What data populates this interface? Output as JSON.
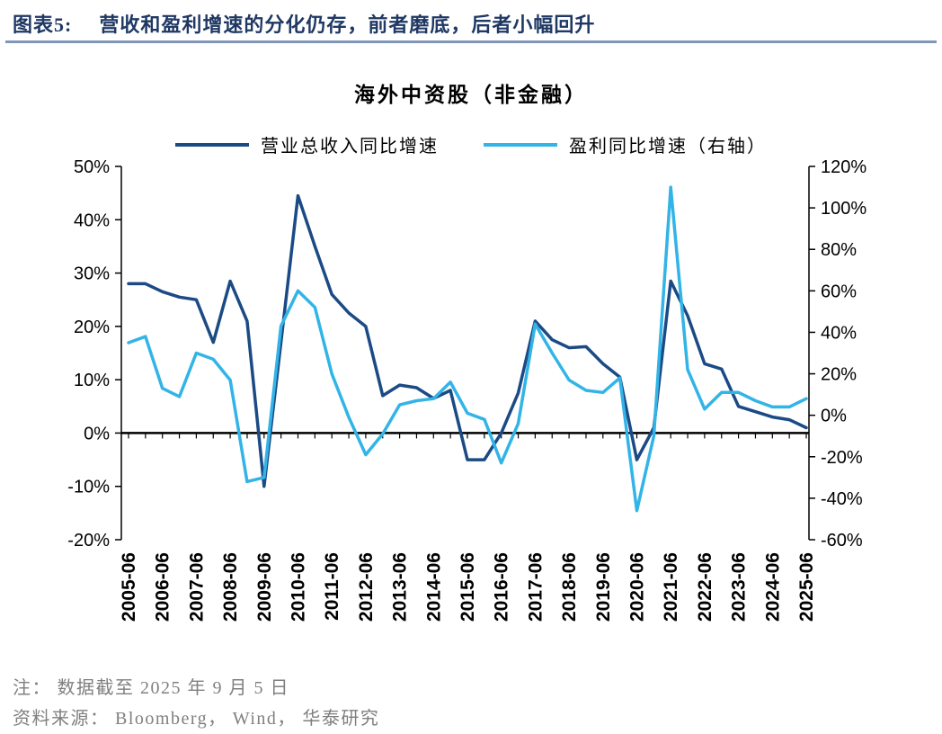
{
  "header": {
    "tag": "图表5:",
    "title": "营收和盈利增速的分化仍存，前者磨底，后者小幅回升"
  },
  "chart_data": {
    "type": "line",
    "title": "海外中资股（非金融）",
    "grid": false,
    "legend_position": "top",
    "x_labels": [
      "2005-06",
      "2006-06",
      "2007-06",
      "2008-06",
      "2009-06",
      "2010-06",
      "2011-06",
      "2012-06",
      "2013-06",
      "2014-06",
      "2015-06",
      "2016-06",
      "2017-06",
      "2018-06",
      "2019-06",
      "2020-06",
      "2021-06",
      "2022-06",
      "2023-06",
      "2024-06",
      "2025-06"
    ],
    "categories": [
      "2005-06",
      "2005-12",
      "2006-06",
      "2006-12",
      "2007-06",
      "2007-12",
      "2008-06",
      "2008-12",
      "2009-06",
      "2009-12",
      "2010-06",
      "2010-12",
      "2011-06",
      "2011-12",
      "2012-06",
      "2012-12",
      "2013-06",
      "2013-12",
      "2014-06",
      "2014-12",
      "2015-06",
      "2015-12",
      "2016-06",
      "2016-12",
      "2017-06",
      "2017-12",
      "2018-06",
      "2018-12",
      "2019-06",
      "2019-12",
      "2020-06",
      "2020-12",
      "2021-06",
      "2021-12",
      "2022-06",
      "2022-12",
      "2023-06",
      "2023-12",
      "2024-06",
      "2024-12",
      "2025-06"
    ],
    "left_axis": {
      "min": -20,
      "max": 50,
      "step": 10,
      "ticks": [
        "50%",
        "40%",
        "30%",
        "20%",
        "10%",
        "0%",
        "-10%",
        "-20%"
      ]
    },
    "right_axis": {
      "min": -60,
      "max": 120,
      "step": 20,
      "ticks": [
        "120%",
        "100%",
        "80%",
        "60%",
        "40%",
        "20%",
        "0%",
        "-20%",
        "-40%",
        "-60%"
      ]
    },
    "series": [
      {
        "name": "营业总收入同比增速",
        "axis": "left",
        "color": "#1b4a85",
        "values": [
          28,
          28,
          26.5,
          25.5,
          25,
          17,
          28.5,
          21,
          -10,
          17,
          44.5,
          35,
          26,
          22.5,
          20,
          7,
          9,
          8.5,
          6.5,
          8,
          -5,
          -5,
          0,
          7.5,
          21,
          17.5,
          16,
          16.2,
          13,
          10.5,
          -5,
          1,
          28.5,
          22,
          13,
          12,
          5,
          4,
          3,
          2.5,
          1
        ]
      },
      {
        "name": "盈利同比增速（右轴）",
        "axis": "right",
        "color": "#32b4e7",
        "values": [
          35,
          38,
          13,
          9,
          30,
          27,
          17,
          -32,
          -30,
          43,
          60,
          52,
          20,
          -1,
          -19,
          -9,
          5,
          7,
          8,
          16,
          1,
          -2,
          -23,
          -4,
          44,
          30,
          17,
          12,
          11,
          18,
          -46,
          -10,
          110,
          22,
          3,
          11,
          11,
          7,
          4,
          4,
          8
        ]
      }
    ]
  },
  "footer": {
    "note": "注： 数据截至 2025 年 9 月 5 日",
    "source": "资料来源： Bloomberg， Wind， 华泰研究"
  }
}
